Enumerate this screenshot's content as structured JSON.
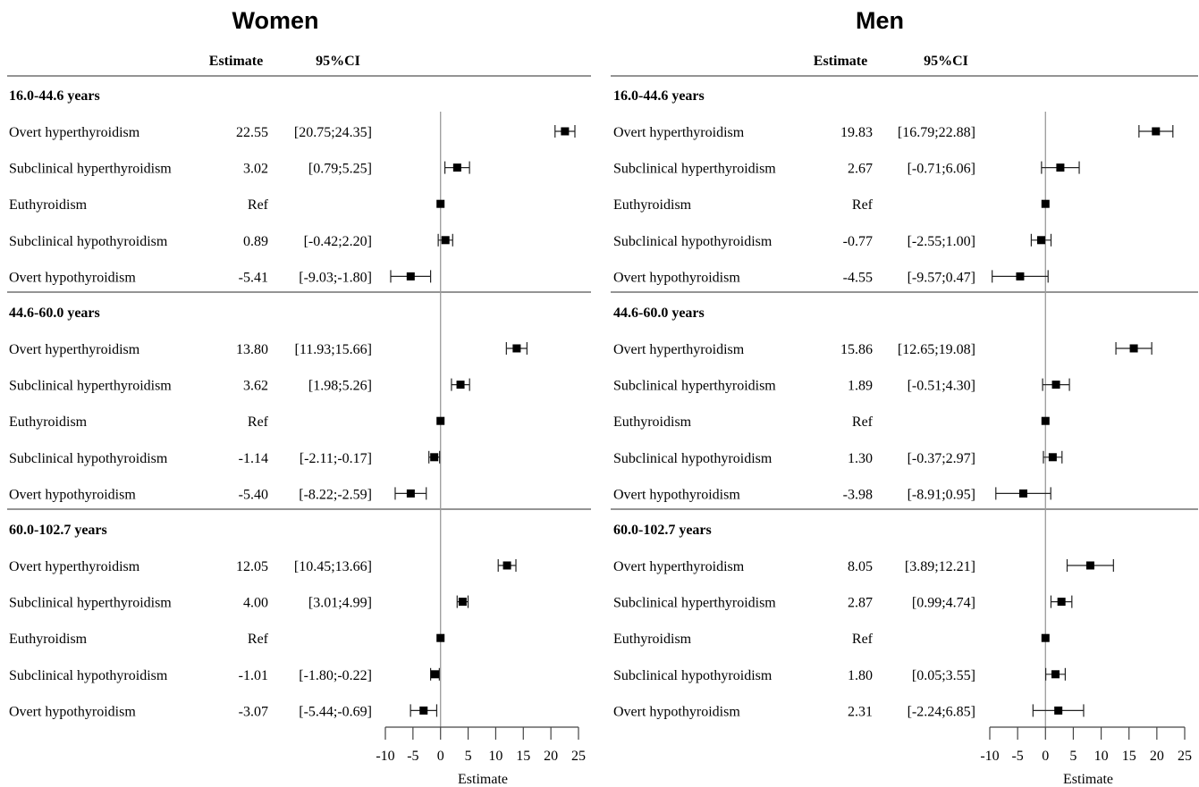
{
  "chart_data": [
    {
      "type": "forest",
      "title": "Women",
      "header_estimate": "Estimate",
      "header_ci": "95%CI",
      "xlabel": "Estimate",
      "xlim": [
        -10,
        25
      ],
      "xticks": [
        "-10",
        "-5",
        "0",
        "5",
        "10",
        "15",
        "20",
        "25"
      ],
      "groups": [
        {
          "label": "16.0-44.6 years",
          "rows": [
            {
              "label": "Overt hyperthyroidism",
              "estimate_text": "22.55",
              "ci_text": "[20.75;24.35]",
              "estimate": 22.55,
              "lower": 20.75,
              "upper": 24.35
            },
            {
              "label": "Subclinical hyperthyroidism",
              "estimate_text": "3.02",
              "ci_text": "[0.79;5.25]",
              "estimate": 3.02,
              "lower": 0.79,
              "upper": 5.25
            },
            {
              "label": "Euthyroidism",
              "estimate_text": "Ref",
              "ci_text": "",
              "estimate": 0,
              "lower": null,
              "upper": null
            },
            {
              "label": "Subclinical hypothyroidism",
              "estimate_text": "0.89",
              "ci_text": "[-0.42;2.20]",
              "estimate": 0.89,
              "lower": -0.42,
              "upper": 2.2
            },
            {
              "label": "Overt hypothyroidism",
              "estimate_text": "-5.41",
              "ci_text": "[-9.03;-1.80]",
              "estimate": -5.41,
              "lower": -9.03,
              "upper": -1.8
            }
          ]
        },
        {
          "label": "44.6-60.0 years",
          "rows": [
            {
              "label": "Overt hyperthyroidism",
              "estimate_text": "13.80",
              "ci_text": "[11.93;15.66]",
              "estimate": 13.8,
              "lower": 11.93,
              "upper": 15.66
            },
            {
              "label": "Subclinical hyperthyroidism",
              "estimate_text": "3.62",
              "ci_text": "[1.98;5.26]",
              "estimate": 3.62,
              "lower": 1.98,
              "upper": 5.26
            },
            {
              "label": "Euthyroidism",
              "estimate_text": "Ref",
              "ci_text": "",
              "estimate": 0,
              "lower": null,
              "upper": null
            },
            {
              "label": "Subclinical hypothyroidism",
              "estimate_text": "-1.14",
              "ci_text": "[-2.11;-0.17]",
              "estimate": -1.14,
              "lower": -2.11,
              "upper": -0.17
            },
            {
              "label": "Overt hypothyroidism",
              "estimate_text": "-5.40",
              "ci_text": "[-8.22;-2.59]",
              "estimate": -5.4,
              "lower": -8.22,
              "upper": -2.59
            }
          ]
        },
        {
          "label": "60.0-102.7 years",
          "rows": [
            {
              "label": "Overt hyperthyroidism",
              "estimate_text": "12.05",
              "ci_text": "[10.45;13.66]",
              "estimate": 12.05,
              "lower": 10.45,
              "upper": 13.66
            },
            {
              "label": "Subclinical hyperthyroidism",
              "estimate_text": "4.00",
              "ci_text": "[3.01;4.99]",
              "estimate": 4.0,
              "lower": 3.01,
              "upper": 4.99
            },
            {
              "label": "Euthyroidism",
              "estimate_text": "Ref",
              "ci_text": "",
              "estimate": 0,
              "lower": null,
              "upper": null
            },
            {
              "label": "Subclinical hypothyroidism",
              "estimate_text": "-1.01",
              "ci_text": "[-1.80;-0.22]",
              "estimate": -1.01,
              "lower": -1.8,
              "upper": -0.22
            },
            {
              "label": "Overt hypothyroidism",
              "estimate_text": "-3.07",
              "ci_text": "[-5.44;-0.69]",
              "estimate": -3.07,
              "lower": -5.44,
              "upper": -0.69
            }
          ]
        }
      ]
    },
    {
      "type": "forest",
      "title": "Men",
      "header_estimate": "Estimate",
      "header_ci": "95%CI",
      "xlabel": "Estimate",
      "xlim": [
        -10,
        25
      ],
      "xticks": [
        "-10",
        "-5",
        "0",
        "5",
        "10",
        "15",
        "20",
        "25"
      ],
      "groups": [
        {
          "label": "16.0-44.6 years",
          "rows": [
            {
              "label": "Overt hyperthyroidism",
              "estimate_text": "19.83",
              "ci_text": "[16.79;22.88]",
              "estimate": 19.83,
              "lower": 16.79,
              "upper": 22.88
            },
            {
              "label": "Subclinical hyperthyroidism",
              "estimate_text": "2.67",
              "ci_text": "[-0.71;6.06]",
              "estimate": 2.67,
              "lower": -0.71,
              "upper": 6.06
            },
            {
              "label": "Euthyroidism",
              "estimate_text": "Ref",
              "ci_text": "",
              "estimate": 0,
              "lower": null,
              "upper": null
            },
            {
              "label": "Subclinical hypothyroidism",
              "estimate_text": "-0.77",
              "ci_text": "[-2.55;1.00]",
              "estimate": -0.77,
              "lower": -2.55,
              "upper": 1.0
            },
            {
              "label": "Overt hypothyroidism",
              "estimate_text": "-4.55",
              "ci_text": "[-9.57;0.47]",
              "estimate": -4.55,
              "lower": -9.57,
              "upper": 0.47
            }
          ]
        },
        {
          "label": "44.6-60.0 years",
          "rows": [
            {
              "label": "Overt hyperthyroidism",
              "estimate_text": "15.86",
              "ci_text": "[12.65;19.08]",
              "estimate": 15.86,
              "lower": 12.65,
              "upper": 19.08
            },
            {
              "label": "Subclinical hyperthyroidism",
              "estimate_text": "1.89",
              "ci_text": "[-0.51;4.30]",
              "estimate": 1.89,
              "lower": -0.51,
              "upper": 4.3
            },
            {
              "label": "Euthyroidism",
              "estimate_text": "Ref",
              "ci_text": "",
              "estimate": 0,
              "lower": null,
              "upper": null
            },
            {
              "label": "Subclinical hypothyroidism",
              "estimate_text": "1.30",
              "ci_text": "[-0.37;2.97]",
              "estimate": 1.3,
              "lower": -0.37,
              "upper": 2.97
            },
            {
              "label": "Overt hypothyroidism",
              "estimate_text": "-3.98",
              "ci_text": "[-8.91;0.95]",
              "estimate": -3.98,
              "lower": -8.91,
              "upper": 0.95
            }
          ]
        },
        {
          "label": "60.0-102.7 years",
          "rows": [
            {
              "label": "Overt hyperthyroidism",
              "estimate_text": "8.05",
              "ci_text": "[3.89;12.21]",
              "estimate": 8.05,
              "lower": 3.89,
              "upper": 12.21
            },
            {
              "label": "Subclinical hyperthyroidism",
              "estimate_text": "2.87",
              "ci_text": "[0.99;4.74]",
              "estimate": 2.87,
              "lower": 0.99,
              "upper": 4.74
            },
            {
              "label": "Euthyroidism",
              "estimate_text": "Ref",
              "ci_text": "",
              "estimate": 0,
              "lower": null,
              "upper": null
            },
            {
              "label": "Subclinical hypothyroidism",
              "estimate_text": "1.80",
              "ci_text": "[0.05;3.55]",
              "estimate": 1.8,
              "lower": 0.05,
              "upper": 3.55
            },
            {
              "label": "Overt hypothyroidism",
              "estimate_text": "2.31",
              "ci_text": "[-2.24;6.85]",
              "estimate": 2.31,
              "lower": -2.24,
              "upper": 6.85
            }
          ]
        }
      ]
    }
  ]
}
